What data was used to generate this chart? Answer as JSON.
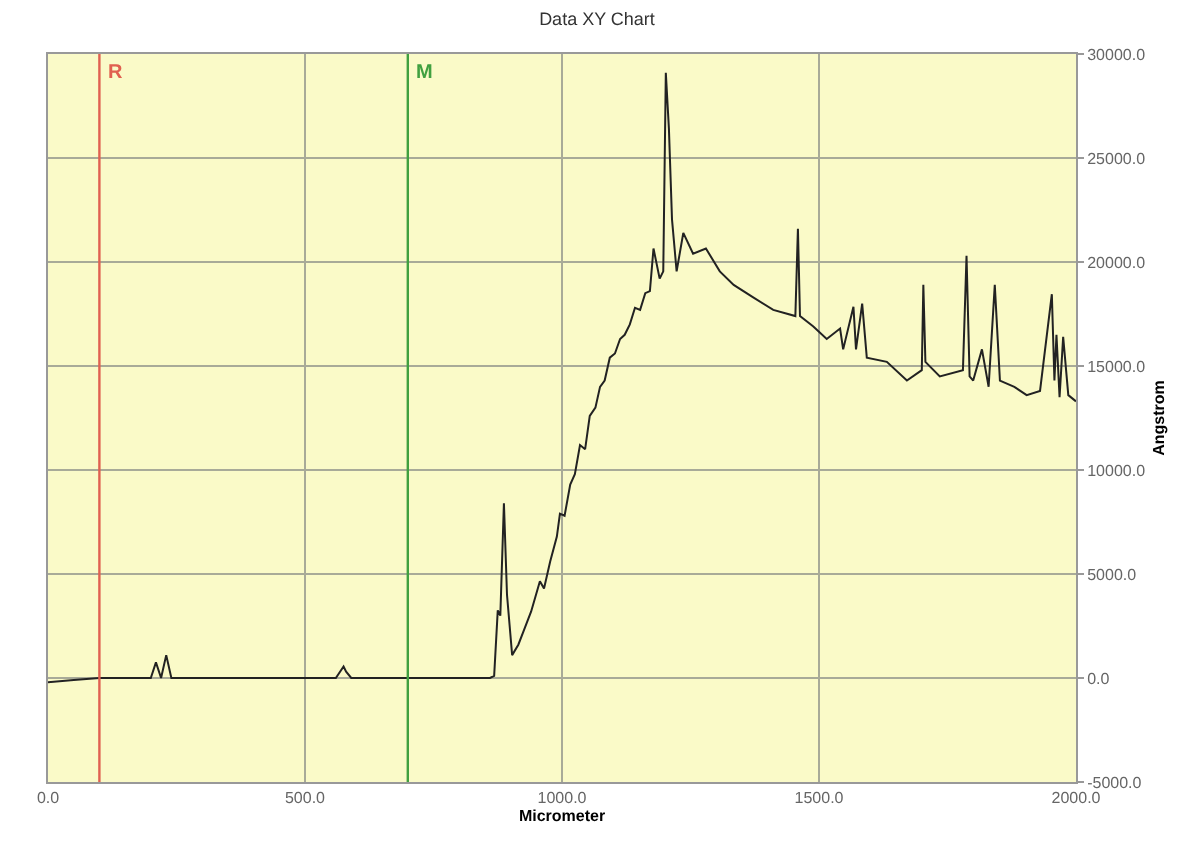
{
  "chart_data": {
    "type": "line",
    "title": "Data XY Chart",
    "xlabel": "Micrometer",
    "ylabel": "Angstrom",
    "x": [
      0,
      50,
      100,
      150,
      200,
      210,
      220,
      230,
      240,
      300,
      400,
      500,
      560,
      575,
      580,
      590,
      600,
      700,
      800,
      860,
      868,
      875,
      880,
      887,
      893,
      903,
      915,
      926,
      940,
      957,
      965,
      977,
      990,
      996,
      1005,
      1016,
      1025,
      1035,
      1045,
      1054,
      1065,
      1074,
      1083,
      1093,
      1103,
      1113,
      1122,
      1132,
      1142,
      1152,
      1162,
      1171,
      1178,
      1190,
      1197,
      1202,
      1208,
      1214,
      1223,
      1236,
      1255,
      1280,
      1307,
      1334,
      1372,
      1411,
      1454,
      1459,
      1463,
      1489,
      1515,
      1541,
      1547,
      1567,
      1572,
      1584,
      1593,
      1632,
      1671,
      1700,
      1703,
      1707,
      1735,
      1780,
      1787,
      1793,
      1800,
      1817,
      1830,
      1842,
      1852,
      1880,
      1904,
      1930,
      1953,
      1958,
      1962,
      1968,
      1975,
      1985,
      2000
    ],
    "series": [
      {
        "color": "#222222",
        "values": [
          -200,
          -100,
          0,
          0,
          0,
          750,
          0,
          1100,
          0,
          0,
          0,
          0,
          0,
          550,
          300,
          0,
          0,
          0,
          0,
          0,
          100,
          3250,
          3000,
          8400,
          4000,
          1100,
          1600,
          2300,
          3200,
          4650,
          4300,
          5600,
          6800,
          7900,
          7800,
          9300,
          9800,
          11200,
          11000,
          12600,
          13000,
          14000,
          14300,
          15400,
          15600,
          16300,
          16500,
          17000,
          17800,
          17700,
          18500,
          18600,
          20650,
          19200,
          19550,
          29100,
          26400,
          22050,
          19550,
          21400,
          20400,
          20650,
          19550,
          18900,
          18300,
          17700,
          17400,
          21600,
          17400,
          16900,
          16300,
          16800,
          15800,
          17850,
          15800,
          18000,
          15400,
          15200,
          14300,
          14800,
          18900,
          15200,
          14500,
          14800,
          20300,
          14500,
          14300,
          15800,
          14000,
          18900,
          14300,
          14000,
          13600,
          13800,
          18450,
          14300,
          16500,
          13500,
          16400,
          13600,
          13300
        ]
      }
    ],
    "xlim": [
      0,
      2000
    ],
    "ylim": [
      -5000,
      30000
    ],
    "xticks": [
      {
        "value": 0,
        "label": "0.0"
      },
      {
        "value": 500,
        "label": "500.0"
      },
      {
        "value": 1000,
        "label": "1000.0"
      },
      {
        "value": 1500,
        "label": "1500.0"
      },
      {
        "value": 2000,
        "label": "2000.0"
      }
    ],
    "yticks": [
      {
        "value": -5000,
        "label": "-5000.0"
      },
      {
        "value": 0,
        "label": "0.0"
      },
      {
        "value": 5000,
        "label": "5000.0"
      },
      {
        "value": 10000,
        "label": "10000.0"
      },
      {
        "value": 15000,
        "label": "15000.0"
      },
      {
        "value": 20000,
        "label": "20000.0"
      },
      {
        "value": 25000,
        "label": "25000.0"
      },
      {
        "value": 30000,
        "label": "30000.0"
      }
    ],
    "ref_lines": [
      {
        "axis": "x",
        "value": 100,
        "label": "R",
        "color": "#e06050"
      },
      {
        "axis": "x",
        "value": 700,
        "label": "M",
        "color": "#40a040"
      }
    ],
    "grid": true,
    "marker": "none",
    "line_style": "solid"
  }
}
